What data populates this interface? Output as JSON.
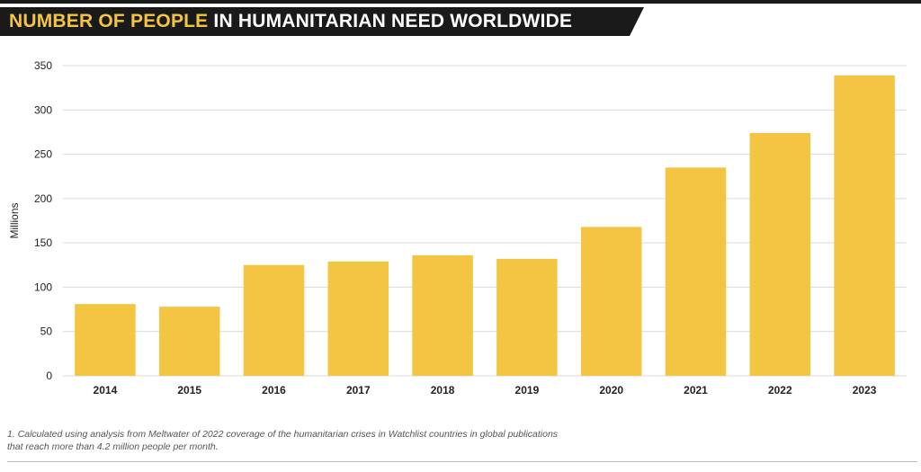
{
  "header": {
    "title_highlight": "NUMBER OF PEOPLE",
    "title_rest": " IN HUMANITARIAN NEED WORLDWIDE"
  },
  "colors": {
    "bar": "#f4c542",
    "highlight": "#f4c542",
    "banner": "#1a1a1a",
    "grid": "#d9d9d9"
  },
  "chart_data": {
    "type": "bar",
    "title": "NUMBER OF PEOPLE IN HUMANITARIAN NEED WORLDWIDE",
    "xlabel": "",
    "ylabel": "Millions",
    "ylim": [
      0,
      350
    ],
    "yticks": [
      0,
      50,
      100,
      150,
      200,
      250,
      300,
      350
    ],
    "grid": true,
    "categories": [
      "2014",
      "2015",
      "2016",
      "2017",
      "2018",
      "2019",
      "2020",
      "2021",
      "2022",
      "2023"
    ],
    "values": [
      81,
      78,
      125,
      129,
      136,
      132,
      168,
      235,
      274,
      339
    ]
  },
  "footnote": {
    "line1": "1. Calculated using analysis from Meltwater of 2022 coverage of the humanitarian crises in Watchlist countries in global publications",
    "line2": "that reach more than 4.2 million people per month."
  }
}
